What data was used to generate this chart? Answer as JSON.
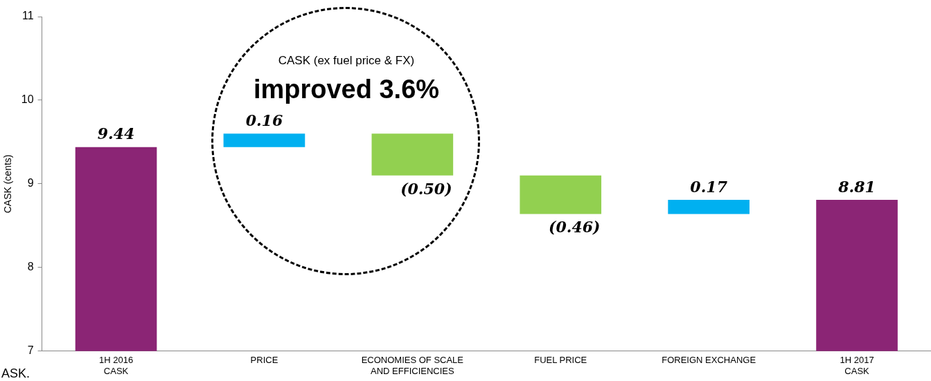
{
  "chart_data": {
    "type": "bar",
    "ylabel": "CASK (cents)",
    "categories": [
      "1H 2016\nCASK",
      "PRICE",
      "ECONOMIES OF SCALE\nAND EFFICIENCIES",
      "FUEL PRICE",
      "FOREIGN EXCHANGE",
      "1H 2017\nCASK"
    ],
    "values": [
      9.44,
      0.16,
      -0.5,
      -0.46,
      0.17,
      8.81
    ],
    "base": [
      null,
      9.44,
      9.6,
      9.1,
      8.64,
      null
    ],
    "colors": [
      "#8b2575",
      "#00b0f0",
      "#92d050",
      "#92d050",
      "#00b0f0",
      "#8b2575"
    ],
    "value_labels": [
      "9.44",
      "0.16",
      "(0.50)",
      "(0.46)",
      "0.17",
      "8.81"
    ],
    "ylim": [
      7,
      11
    ],
    "yticks": [
      7,
      8,
      9,
      10,
      11
    ],
    "grid": false,
    "legend": false,
    "annotations": [
      "CASK (ex fuel price & FX)",
      "improved 3.6%",
      "ASK."
    ]
  }
}
